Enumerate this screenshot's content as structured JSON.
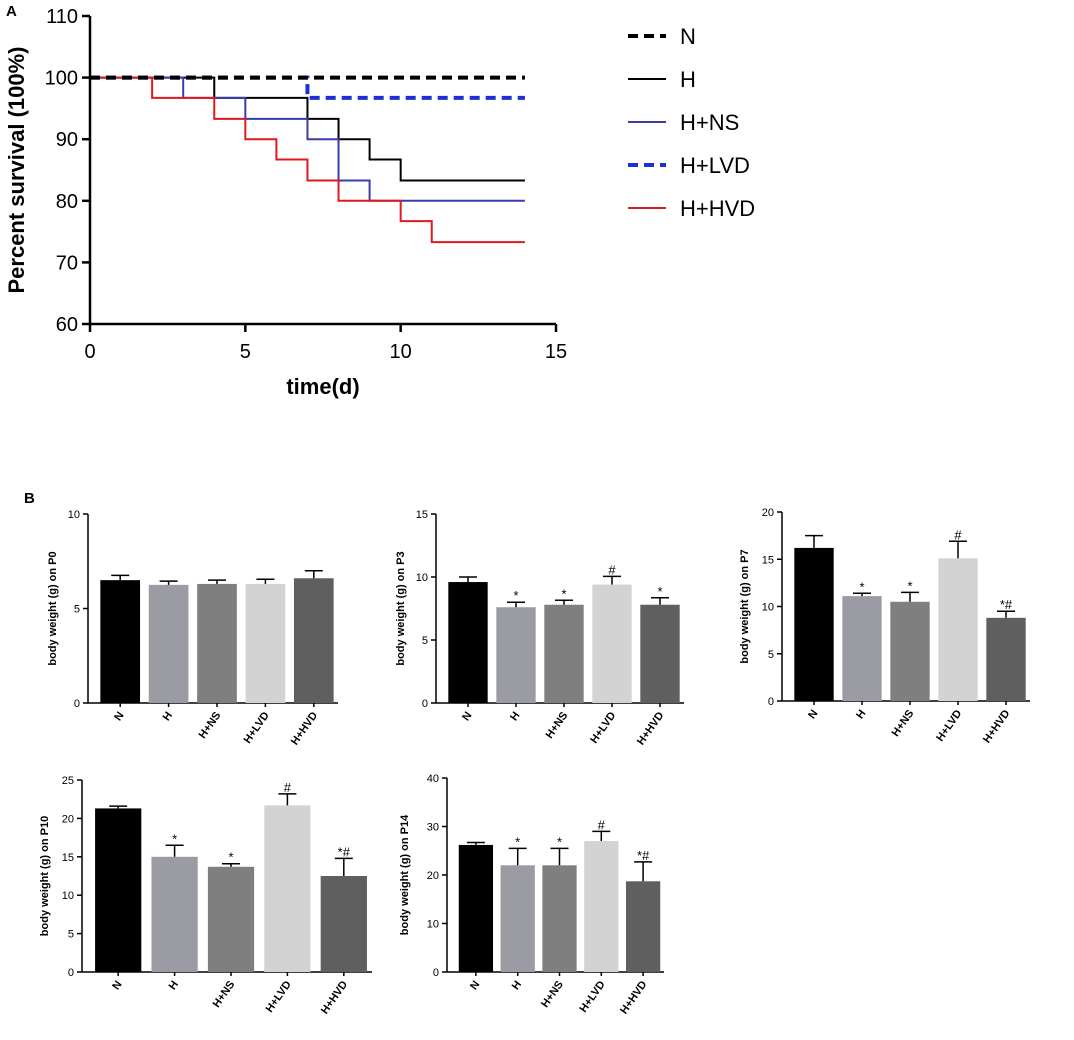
{
  "panel_labels": {
    "a": "A",
    "b": "B"
  },
  "chart_data": [
    {
      "id": "survival",
      "type": "line",
      "step": true,
      "title": "",
      "xlabel": "time(d)",
      "ylabel": "Percent survival (100%)",
      "xlim": [
        0,
        15
      ],
      "ylim": [
        60,
        110
      ],
      "x_ticks": [
        0,
        5,
        10,
        15
      ],
      "y_ticks": [
        60,
        70,
        80,
        90,
        100,
        110
      ],
      "legend_position": "right",
      "series": [
        {
          "name": "N",
          "color": "#000000",
          "dash": true,
          "width": 4,
          "x": [
            0,
            14
          ],
          "y": [
            100,
            100
          ]
        },
        {
          "name": "H",
          "color": "#000000",
          "dash": false,
          "width": 2,
          "x": [
            0,
            4,
            7,
            8,
            9,
            10,
            14
          ],
          "y": [
            100,
            96.7,
            93.3,
            90,
            86.7,
            83.3,
            83.3
          ]
        },
        {
          "name": "H+NS",
          "color": "#3c3ca8",
          "dash": false,
          "width": 2,
          "x": [
            0,
            3,
            5,
            7,
            8,
            9,
            14
          ],
          "y": [
            100,
            96.7,
            93.3,
            90,
            83.3,
            80,
            80
          ]
        },
        {
          "name": "H+LVD",
          "color": "#1f2fd6",
          "dash": true,
          "width": 4,
          "x": [
            0,
            7,
            14
          ],
          "y": [
            100,
            96.7,
            96.7
          ]
        },
        {
          "name": "H+HVD",
          "color": "#e0191e",
          "dash": false,
          "width": 2,
          "x": [
            0,
            2,
            4,
            5,
            6,
            7,
            8,
            10,
            11,
            14
          ],
          "y": [
            100,
            96.7,
            93.3,
            90,
            86.7,
            83.3,
            80,
            76.7,
            73.3,
            73.3
          ]
        }
      ]
    },
    {
      "id": "p0",
      "type": "bar",
      "ylabel": "body weight (g) on P0",
      "categories": [
        "N",
        "H",
        "H+NS",
        "H+LVD",
        "H+HVD"
      ],
      "values": [
        6.5,
        6.25,
        6.3,
        6.3,
        6.6
      ],
      "errors": [
        0.25,
        0.2,
        0.2,
        0.25,
        0.4
      ],
      "annotations": [
        "",
        "",
        "",
        "",
        ""
      ],
      "ylim": [
        0,
        10
      ],
      "y_ticks": [
        0,
        5,
        10
      ],
      "bar_colors": [
        "#000000",
        "#9b9ba3",
        "#7f7f7f",
        "#d3d3d3",
        "#5f5f5f"
      ]
    },
    {
      "id": "p3",
      "type": "bar",
      "ylabel": "body weight (g) on P3",
      "categories": [
        "N",
        "H",
        "H+NS",
        "H+LVD",
        "H+HVD"
      ],
      "values": [
        9.6,
        7.6,
        7.8,
        9.4,
        7.8
      ],
      "errors": [
        0.4,
        0.4,
        0.35,
        0.65,
        0.55
      ],
      "annotations": [
        "",
        "*",
        "*",
        "#",
        "*"
      ],
      "ylim": [
        0,
        15
      ],
      "y_ticks": [
        0,
        5,
        10,
        15
      ],
      "bar_colors": [
        "#000000",
        "#9b9ba3",
        "#7f7f7f",
        "#d3d3d3",
        "#5f5f5f"
      ]
    },
    {
      "id": "p7",
      "type": "bar",
      "ylabel": "body weight (g) on P7",
      "categories": [
        "N",
        "H",
        "H+NS",
        "H+LVD",
        "H+HVD"
      ],
      "values": [
        16.2,
        11.1,
        10.5,
        15.1,
        8.8
      ],
      "errors": [
        1.3,
        0.3,
        1.0,
        1.8,
        0.7
      ],
      "annotations": [
        "",
        "*",
        "*",
        "#",
        "*#"
      ],
      "ylim": [
        0,
        20
      ],
      "y_ticks": [
        0,
        5,
        10,
        15,
        20
      ],
      "bar_colors": [
        "#000000",
        "#9b9ba3",
        "#7f7f7f",
        "#d3d3d3",
        "#5f5f5f"
      ]
    },
    {
      "id": "p10",
      "type": "bar",
      "ylabel": "body weight (g) on P10",
      "categories": [
        "N",
        "H",
        "H+NS",
        "H+LVD",
        "H+HVD"
      ],
      "values": [
        21.3,
        15.0,
        13.7,
        21.7,
        12.5
      ],
      "errors": [
        0.3,
        1.5,
        0.4,
        1.5,
        2.3
      ],
      "annotations": [
        "",
        "*",
        "*",
        "#",
        "*#"
      ],
      "ylim": [
        0,
        25
      ],
      "y_ticks": [
        0,
        5,
        10,
        15,
        20,
        25
      ],
      "bar_colors": [
        "#000000",
        "#9b9ba3",
        "#7f7f7f",
        "#d3d3d3",
        "#5f5f5f"
      ]
    },
    {
      "id": "p14",
      "type": "bar",
      "ylabel": "body weight (g) on P14",
      "categories": [
        "N",
        "H",
        "H+NS",
        "H+LVD",
        "H+HVD"
      ],
      "values": [
        26.2,
        22.0,
        22.0,
        27.0,
        18.7
      ],
      "errors": [
        0.5,
        3.5,
        3.5,
        2.0,
        4.0
      ],
      "annotations": [
        "",
        "*",
        "*",
        "#",
        "*#"
      ],
      "ylim": [
        0,
        40
      ],
      "y_ticks": [
        0,
        10,
        20,
        30,
        40
      ],
      "bar_colors": [
        "#000000",
        "#9b9ba3",
        "#7f7f7f",
        "#d3d3d3",
        "#5f5f5f"
      ]
    }
  ]
}
